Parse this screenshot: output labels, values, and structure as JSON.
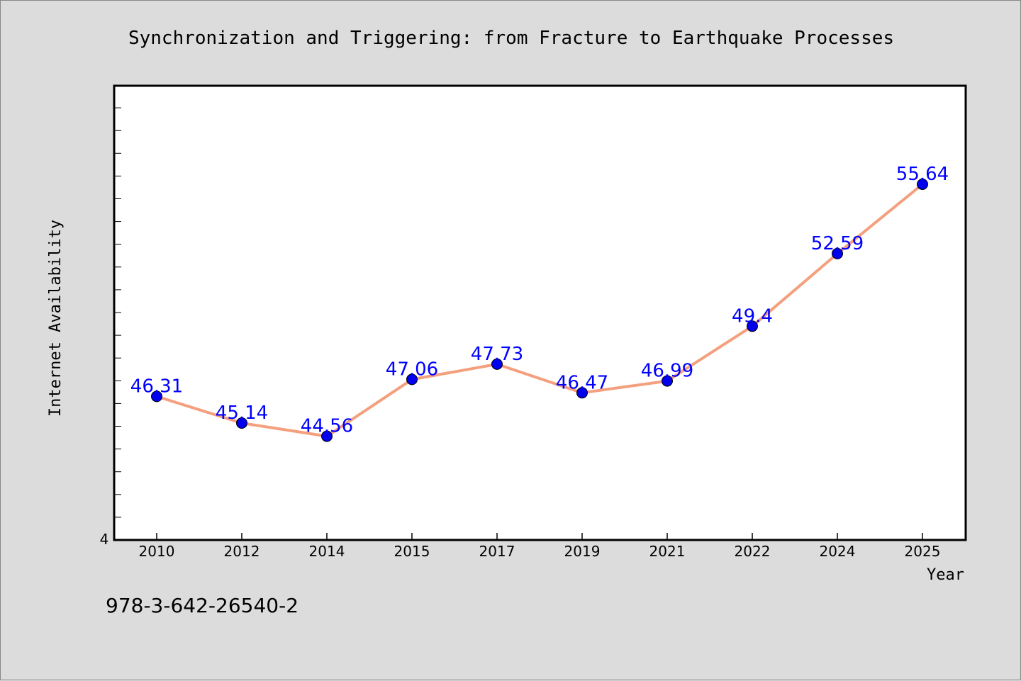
{
  "footer": {
    "isbn": "978-3-642-26540-2"
  },
  "colors": {
    "line": "#f4a07f",
    "marker": "#0000ee",
    "label": "#0000ff",
    "background": "#dcdcdc",
    "plot_background": "#ffffff"
  },
  "chart_data": {
    "type": "line",
    "title": "Synchronization and Triggering: from Fracture to Earthquake Processes",
    "xlabel": "Year",
    "ylabel": "Internet Availability",
    "categories": [
      "2010",
      "2012",
      "2014",
      "2015",
      "2017",
      "2019",
      "2021",
      "2022",
      "2024",
      "2025"
    ],
    "series": [
      {
        "values": [
          46.31,
          45.14,
          44.56,
          47.06,
          47.73,
          46.47,
          46.99,
          49.4,
          52.59,
          55.64
        ]
      }
    ],
    "data_labels": [
      "46.31",
      "45.14",
      "44.56",
      "47.06",
      "47.73",
      "46.47",
      "46.99",
      "49.4",
      "52.59",
      "55.64"
    ],
    "y_tick_labels": [
      "4"
    ],
    "ylim": [
      40,
      60
    ],
    "grid": false,
    "legend": "none"
  }
}
